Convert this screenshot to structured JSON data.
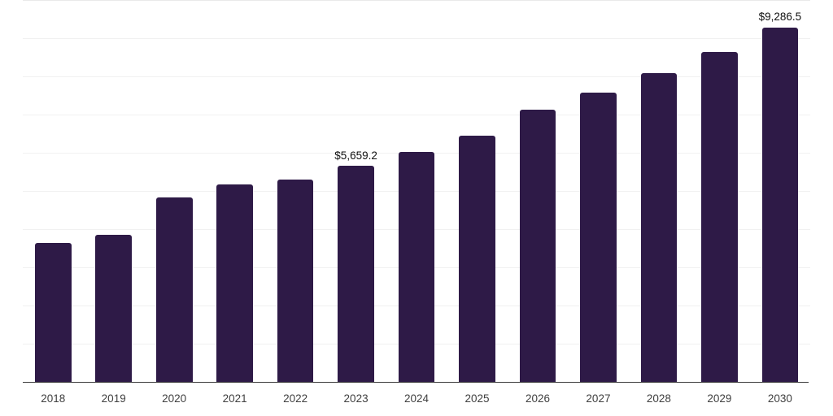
{
  "chart_data": {
    "type": "bar",
    "title": "",
    "xlabel": "",
    "ylabel": "",
    "categories": [
      "2018",
      "2019",
      "2020",
      "2021",
      "2022",
      "2023",
      "2024",
      "2025",
      "2026",
      "2027",
      "2028",
      "2029",
      "2030"
    ],
    "values": [
      3630,
      3860,
      4830,
      5160,
      5290,
      5659.2,
      6020,
      6450,
      7120,
      7570,
      8080,
      8630,
      9286.5
    ],
    "data_labels": [
      {
        "category": "2023",
        "text": "$5,659.2"
      },
      {
        "category": "2030",
        "text": "$9,286.5"
      }
    ],
    "ylim": [
      0,
      10000
    ],
    "gridline_interval": 1000,
    "grid": "horizontal",
    "legend": "none",
    "y_axis_tick_labels": "none"
  },
  "style": {
    "background_color": "#ffffff",
    "bar_color": "#2e1a47",
    "gridline_color": "#f1f1f1",
    "top_gridline_color": "#e9e9e9",
    "axis_line_color": "#3a3a3a",
    "tick_label_color": "#404040",
    "data_label_color": "#111111"
  }
}
